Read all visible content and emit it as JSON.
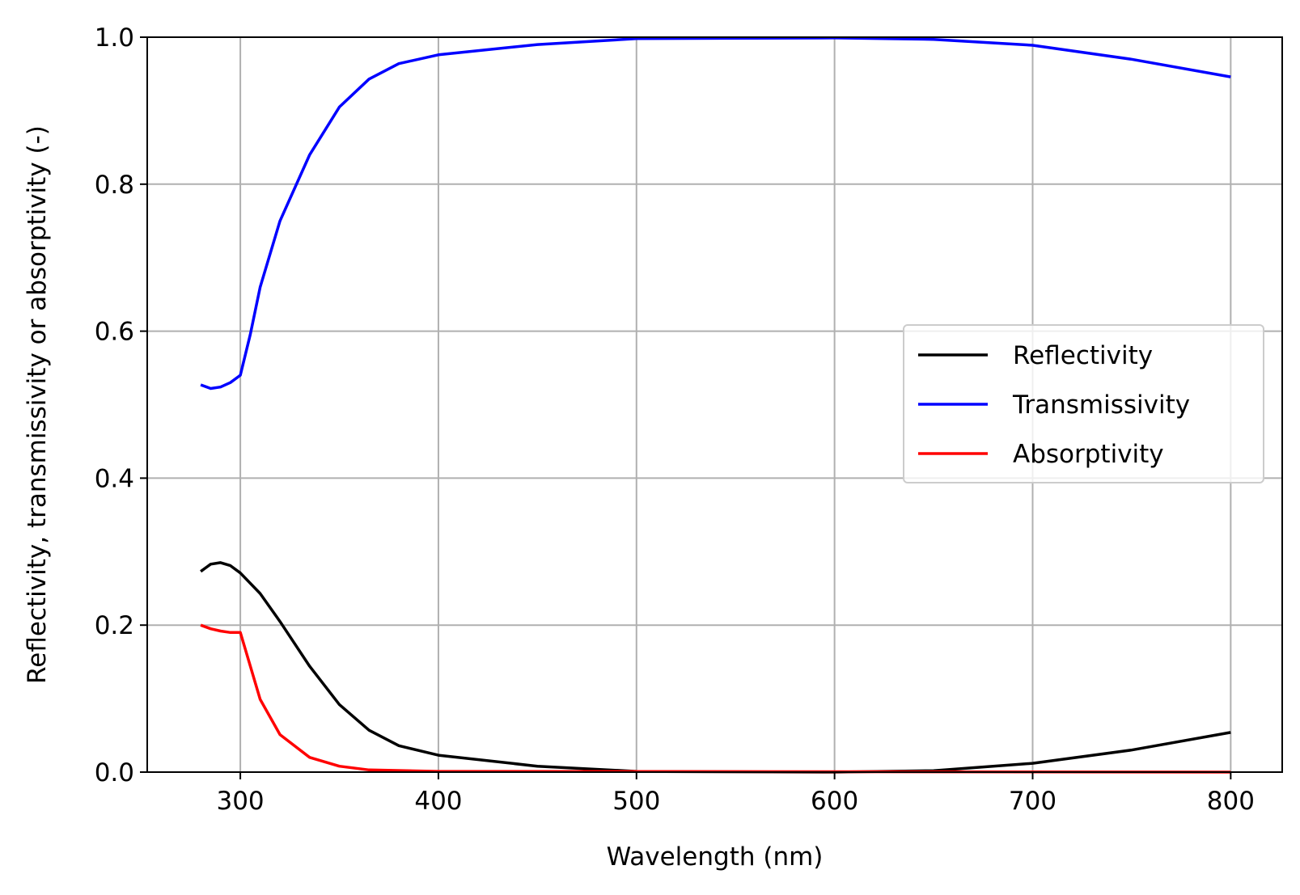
{
  "chart_data": {
    "type": "line",
    "title": "",
    "xlabel": "Wavelength (nm)",
    "ylabel": "Reflectivity, transmissivity or absorptivity (-)",
    "xlim": [
      253,
      826
    ],
    "ylim": [
      0.0,
      1.0
    ],
    "xticks": [
      300,
      400,
      500,
      600,
      700,
      800
    ],
    "xtick_labels": [
      "300",
      "400",
      "500",
      "600",
      "700",
      "800"
    ],
    "yticks": [
      0.0,
      0.2,
      0.4,
      0.6,
      0.8,
      1.0
    ],
    "ytick_labels": [
      "0.0",
      "0.2",
      "0.4",
      "0.6",
      "0.8",
      "1.0"
    ],
    "grid": true,
    "legend_position": "center-right",
    "series": [
      {
        "name": "Reflectivity",
        "color": "#000000",
        "x": [
          280,
          285,
          290,
          295,
          300,
          310,
          320,
          335,
          350,
          365,
          380,
          400,
          450,
          500,
          600,
          650,
          700,
          750,
          800
        ],
        "y": [
          0.273,
          0.283,
          0.285,
          0.281,
          0.271,
          0.243,
          0.205,
          0.144,
          0.092,
          0.057,
          0.036,
          0.023,
          0.008,
          0.001,
          0.0,
          0.002,
          0.012,
          0.03,
          0.054
        ]
      },
      {
        "name": "Transmissivity",
        "color": "#0000ff",
        "x": [
          280,
          285,
          290,
          295,
          300,
          305,
          310,
          320,
          335,
          350,
          365,
          380,
          400,
          450,
          500,
          600,
          650,
          700,
          750,
          800
        ],
        "y": [
          0.527,
          0.522,
          0.524,
          0.53,
          0.54,
          0.595,
          0.66,
          0.75,
          0.84,
          0.905,
          0.943,
          0.964,
          0.976,
          0.99,
          0.998,
          0.999,
          0.997,
          0.989,
          0.97,
          0.946
        ]
      },
      {
        "name": "Absorptivity",
        "color": "#ff0000",
        "x": [
          280,
          285,
          290,
          295,
          300,
          310,
          320,
          335,
          350,
          365,
          400,
          800
        ],
        "y": [
          0.2,
          0.195,
          0.192,
          0.19,
          0.19,
          0.099,
          0.051,
          0.02,
          0.008,
          0.003,
          0.001,
          0.0
        ]
      }
    ]
  }
}
